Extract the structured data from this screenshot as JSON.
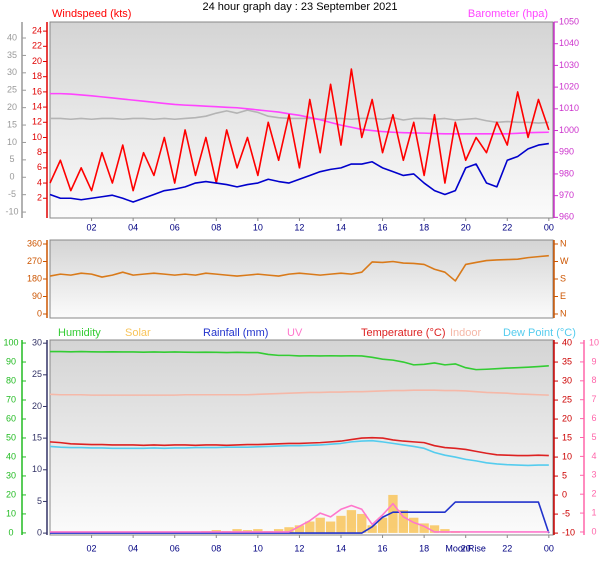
{
  "chart_data": [
    {
      "type": "line",
      "title": "24 hour graph day : 23 September 2021",
      "x": [
        0,
        0.5,
        1,
        1.5,
        2,
        2.5,
        3,
        3.5,
        4,
        4.5,
        5,
        5.5,
        6,
        6.5,
        7,
        7.5,
        8,
        8.5,
        9,
        9.5,
        10,
        10.5,
        11,
        11.5,
        12,
        12.5,
        13,
        13.5,
        14,
        14.5,
        15,
        15.5,
        16,
        16.5,
        17,
        17.5,
        18,
        18.5,
        19,
        19.5,
        20,
        20.5,
        21,
        21.5,
        22,
        22.5,
        23,
        23.5,
        24
      ],
      "xlim": [
        0,
        24.2
      ],
      "xticks": [
        {
          "value": 2,
          "label": "02"
        },
        {
          "value": 4,
          "label": "04"
        },
        {
          "value": 6,
          "label": "06"
        },
        {
          "value": 8,
          "label": "08"
        },
        10,
        12,
        14,
        16,
        18,
        20,
        22,
        {
          "value": 24,
          "label": "00"
        }
      ],
      "ylim": [
        -0.6,
        25.2
      ],
      "yticks": [
        2,
        4,
        6,
        8,
        10,
        12,
        14,
        16,
        18,
        20,
        22,
        24
      ],
      "y2lim": [
        959.7,
        1050
      ],
      "y2ticks": [
        960,
        970,
        980,
        990,
        1000,
        1010,
        1020,
        1030,
        1040,
        1050
      ],
      "y3lim": [
        -11.7,
        44.6
      ],
      "y3ticks": [
        -10,
        -5,
        0,
        5,
        10,
        15,
        20,
        25,
        30,
        35,
        40
      ],
      "series": [
        {
          "color": "#b4b4b4",
          "values": [
            12.5,
            12.5,
            12.4,
            12.5,
            12.4,
            12.5,
            12.5,
            12.4,
            12.5,
            12.5,
            12.4,
            12.5,
            12.4,
            12.5,
            12.6,
            12.8,
            13.2,
            13.5,
            13.2,
            13.6,
            13.3,
            12.8,
            12.6,
            12.5,
            12.5,
            12.5,
            12.4,
            12.5,
            12.5,
            12.4,
            12.5,
            12.5,
            12.4,
            12.6,
            12.3,
            12.5,
            12.5,
            12.4,
            12.5,
            12.3,
            12.4,
            12.5,
            12.2,
            12,
            12.1,
            12,
            12,
            11.9,
            12
          ]
        },
        {
          "name": "Barometer (hpa)",
          "color": "#ff44ff",
          "axis": "y2",
          "values": [
            1017,
            1017,
            1016.8,
            1016.4,
            1016,
            1015.5,
            1015,
            1014.5,
            1014,
            1013.5,
            1013,
            1012.5,
            1012,
            1011.7,
            1011.5,
            1011.2,
            1011,
            1010.7,
            1010.5,
            1010,
            1009.5,
            1009,
            1008.5,
            1007.7,
            1007,
            1006,
            1005,
            1003.7,
            1002.5,
            1001.5,
            1000.5,
            1000,
            999.5,
            999.2,
            999,
            998.9,
            998.8,
            998.6,
            998.5,
            998.5,
            998.5,
            998.5,
            998.5,
            998.5,
            998.5,
            998.7,
            999,
            999.1,
            999.2
          ]
        },
        {
          "name": "Windspeed (kts)",
          "color": "#ff0000",
          "values": [
            4,
            7,
            3,
            6,
            3,
            8,
            4,
            9,
            3,
            8,
            5,
            10,
            4,
            11,
            5,
            10,
            4,
            11,
            6,
            10,
            5,
            12,
            7,
            13,
            6,
            15,
            8,
            17,
            9,
            19,
            10,
            15,
            8,
            13,
            7,
            12,
            5,
            13,
            4,
            12,
            7,
            10,
            8,
            12,
            9,
            16,
            10,
            15,
            11
          ]
        },
        {
          "color": "#0000cc",
          "values": [
            2.5,
            2,
            2,
            1.8,
            2,
            2.2,
            2.4,
            2,
            1.5,
            2,
            2.5,
            3,
            3.2,
            3.5,
            4,
            4.2,
            4,
            3.8,
            3.5,
            3.8,
            4,
            4.5,
            4.2,
            4,
            4.5,
            5,
            5.5,
            5.8,
            6,
            6.5,
            6.5,
            6.8,
            6,
            5.5,
            5,
            5.2,
            4,
            3,
            2.5,
            3,
            6,
            6.5,
            4,
            3.5,
            7,
            7.5,
            8.5,
            9,
            9.2
          ]
        }
      ]
    },
    {
      "type": "line",
      "x": [
        0,
        0.5,
        1,
        1.5,
        2,
        2.5,
        3,
        3.5,
        4,
        4.5,
        5,
        5.5,
        6,
        6.5,
        7,
        7.5,
        8,
        8.5,
        9,
        9.5,
        10,
        10.5,
        11,
        11.5,
        12,
        12.5,
        13,
        13.5,
        14,
        14.5,
        15,
        15.5,
        16,
        16.5,
        17,
        17.5,
        18,
        18.5,
        19,
        19.5,
        20,
        20.5,
        21,
        21.5,
        22,
        22.5,
        23,
        23.5,
        24
      ],
      "xlim": [
        0,
        24.2
      ],
      "ylim": [
        -20.6,
        380.6
      ],
      "yticks": [
        0,
        90,
        180,
        270,
        360
      ],
      "y2lim": [
        -20.6,
        380.6
      ],
      "y2ticks": [
        {
          "value": 0,
          "label": "N"
        },
        {
          "value": 90,
          "label": "E"
        },
        {
          "value": 180,
          "label": "S"
        },
        {
          "value": 270,
          "label": "W"
        },
        {
          "value": 360,
          "label": "N"
        }
      ],
      "series": [
        {
          "color": "#d97a1a",
          "values": [
            195,
            205,
            200,
            210,
            205,
            190,
            200,
            215,
            200,
            205,
            210,
            205,
            200,
            205,
            200,
            210,
            205,
            200,
            195,
            200,
            205,
            200,
            195,
            205,
            210,
            205,
            200,
            205,
            210,
            205,
            215,
            268,
            265,
            270,
            262,
            260,
            255,
            230,
            215,
            170,
            255,
            265,
            275,
            278,
            280,
            282,
            290,
            295,
            300
          ]
        }
      ]
    },
    {
      "type": "line",
      "x": [
        0,
        0.5,
        1,
        1.5,
        2,
        2.5,
        3,
        3.5,
        4,
        4.5,
        5,
        5.5,
        6,
        6.5,
        7,
        7.5,
        8,
        8.5,
        9,
        9.5,
        10,
        10.5,
        11,
        11.5,
        12,
        12.5,
        13,
        13.5,
        14,
        14.5,
        15,
        15.5,
        16,
        16.5,
        17,
        17.5,
        18,
        18.5,
        19,
        19.5,
        20,
        20.5,
        21,
        21.5,
        22,
        22.5,
        23,
        23.5,
        24
      ],
      "xlim": [
        0,
        24.2
      ],
      "xticks": [
        {
          "value": 2,
          "label": "02"
        },
        {
          "value": 4,
          "label": "04"
        },
        {
          "value": 6,
          "label": "06"
        },
        {
          "value": 8,
          "label": "08"
        },
        10,
        12,
        14,
        16,
        18,
        20,
        22,
        {
          "value": 24,
          "label": "00"
        }
      ],
      "ylim": [
        -1.1,
        101.6
      ],
      "yticks": [
        0,
        10,
        20,
        30,
        40,
        50,
        60,
        70,
        80,
        90,
        100
      ],
      "y2lim": [
        -10.5,
        40.8
      ],
      "y2ticks": [
        -10,
        -5,
        0,
        5,
        10,
        15,
        20,
        25,
        30,
        35,
        40
      ],
      "y3lim": [
        -0.3,
        30.5
      ],
      "y3ticks": [
        0,
        5,
        10,
        15,
        20,
        25,
        30
      ],
      "y4lim": [
        -0.16,
        10.16
      ],
      "y4ticks": [
        0,
        1,
        2,
        3,
        4,
        5,
        6,
        7,
        8,
        9,
        10
      ],
      "annotations": [
        {
          "text": "MoonRise",
          "x": 20
        }
      ],
      "series": [
        {
          "name": "Humidity",
          "color": "#33cc33",
          "values": [
            95.5,
            95.5,
            95.4,
            95.5,
            95.4,
            95.3,
            95.4,
            95.3,
            95.3,
            95.2,
            95.3,
            95.2,
            95.3,
            95.2,
            95.1,
            95.2,
            95.1,
            95,
            95.1,
            95,
            95,
            94,
            93.5,
            93.5,
            93.2,
            93.3,
            93.2,
            93.3,
            93.2,
            93.3,
            93.2,
            92.5,
            91.5,
            91,
            90,
            88.5,
            88.8,
            89.5,
            88.5,
            89,
            87,
            86,
            86.2,
            86.5,
            86.8,
            87,
            87.3,
            87.6,
            88
          ]
        },
        {
          "name": "Solar",
          "color": "#f8c45a",
          "style": "bar",
          "values": [
            0,
            0,
            0,
            0,
            0,
            0,
            0,
            0,
            0,
            0,
            0,
            0,
            0,
            0,
            0.5,
            1,
            1.5,
            1,
            2,
            1.5,
            2,
            1,
            2,
            3,
            4,
            6,
            8,
            6,
            9,
            12,
            10,
            4,
            8,
            20,
            12,
            8,
            5,
            4,
            2,
            1,
            0,
            0,
            0,
            0,
            0,
            0,
            0,
            0,
            0
          ]
        },
        {
          "name": "Rainfall (mm)",
          "color": "#2233cc",
          "axis": "y3",
          "values": [
            0,
            0,
            0,
            0,
            0,
            0,
            0,
            0,
            0,
            0,
            0,
            0,
            0,
            0,
            0,
            0,
            0,
            0,
            0,
            0,
            0,
            0,
            0,
            0,
            0,
            0,
            0,
            0,
            0,
            0,
            0,
            1,
            2.5,
            3.3,
            3.3,
            3.3,
            3.3,
            3.3,
            3.3,
            4.9,
            4.9,
            4.9,
            4.9,
            4.9,
            4.9,
            4.9,
            4.9,
            4.9,
            0
          ]
        },
        {
          "name": "UV",
          "color": "#ff77cc",
          "axis": "y4",
          "values": [
            0,
            0,
            0,
            0,
            0,
            0,
            0,
            0,
            0,
            0,
            0,
            0,
            0,
            0,
            0,
            0,
            0,
            0,
            0,
            0,
            0,
            0,
            0,
            0,
            0.3,
            0.6,
            1,
            0.8,
            1.2,
            1.4,
            1.2,
            0.4,
            0.9,
            1.5,
            0.8,
            0.5,
            0.3,
            0,
            0,
            0,
            0,
            0,
            0,
            0,
            0,
            0,
            0,
            0,
            0
          ]
        },
        {
          "name": "Temperature (°C)",
          "color": "#dd2222",
          "axis": "y2",
          "values": [
            14,
            13.8,
            13.5,
            13.4,
            13.3,
            13.3,
            13.2,
            13.2,
            13.2,
            13.1,
            13.2,
            13.1,
            13.2,
            13.2,
            13.1,
            13.2,
            13.2,
            13.1,
            13.2,
            13.3,
            13.3,
            13.4,
            13.5,
            13.6,
            13.6,
            13.7,
            13.8,
            14,
            14.2,
            14.6,
            15,
            15.1,
            15,
            14.5,
            14.2,
            14,
            13.8,
            13,
            12.5,
            12.3,
            12,
            11.5,
            11,
            10.6,
            10.5,
            10.4,
            10.4,
            10.5,
            10.4
          ]
        },
        {
          "name": "Indoor",
          "color": "#f5b8a8",
          "axis": "y2",
          "values": [
            26.5,
            26.4,
            26.4,
            26.4,
            26.3,
            26.3,
            26.3,
            26.3,
            26.3,
            26.3,
            26.3,
            26.3,
            26.3,
            26.4,
            26.4,
            26.4,
            26.4,
            26.4,
            26.4,
            26.4,
            26.5,
            26.6,
            26.7,
            26.8,
            26.9,
            27,
            27,
            27.1,
            27.1,
            27.2,
            27.2,
            27.3,
            27.4,
            27.5,
            27.5,
            27.6,
            27.6,
            27.6,
            27.5,
            27.5,
            27.4,
            27.2,
            27,
            26.9,
            26.8,
            26.6,
            26.5,
            26.4,
            26.3
          ]
        },
        {
          "name": "Dew Point (°C)",
          "color": "#55ccee",
          "axis": "y2",
          "values": [
            12.8,
            12.6,
            12.5,
            12.5,
            12.4,
            12.4,
            12.3,
            12.3,
            12.3,
            12.3,
            12.4,
            12.3,
            12.4,
            12.4,
            12.5,
            12.5,
            12.5,
            12.6,
            12.6,
            12.6,
            12.7,
            12.8,
            12.9,
            13,
            13,
            13.1,
            13.2,
            13.4,
            13.6,
            14,
            14.2,
            14.3,
            14,
            13.6,
            13.2,
            12.8,
            12.3,
            11.2,
            10.5,
            10,
            9.4,
            9,
            8.5,
            8.2,
            8,
            7.9,
            7.8,
            7.9,
            7.9
          ]
        }
      ]
    }
  ]
}
